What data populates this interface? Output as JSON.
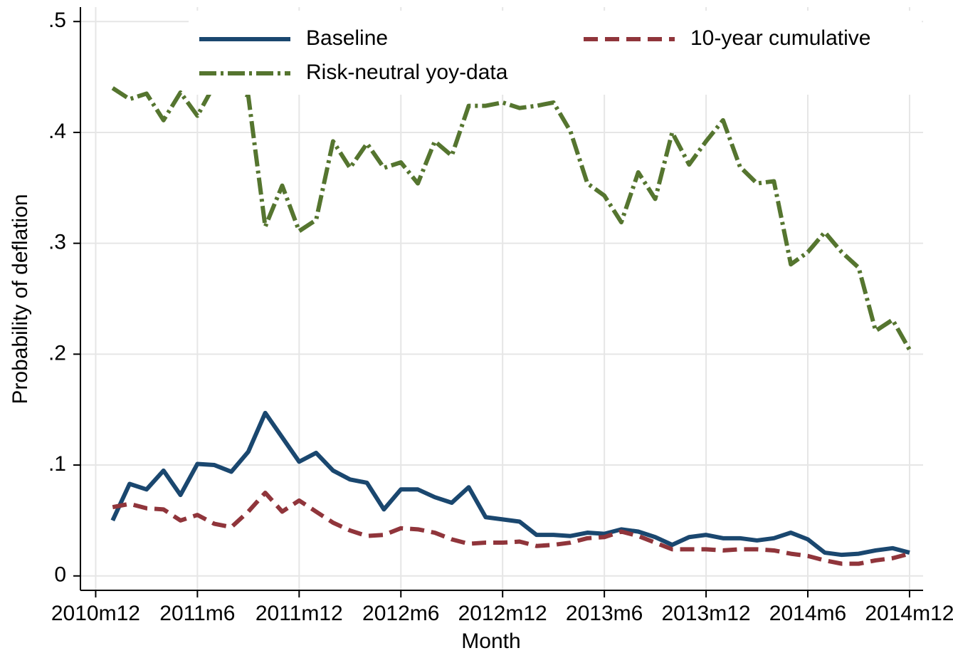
{
  "chart_data": {
    "type": "line",
    "xlabel": "Month",
    "ylabel": "Probability of deflation",
    "x": [
      612,
      613,
      614,
      615,
      616,
      617,
      618,
      619,
      620,
      621,
      622,
      623,
      624,
      625,
      626,
      627,
      628,
      629,
      630,
      631,
      632,
      633,
      634,
      635,
      636,
      637,
      638,
      639,
      640,
      641,
      642,
      643,
      644,
      645,
      646,
      647,
      648,
      649,
      650,
      651,
      652,
      653,
      654,
      655,
      656,
      657,
      658,
      659
    ],
    "xlim": [
      610.1,
      659.8
    ],
    "xticks": [
      {
        "value": 611,
        "label": "2010m12"
      },
      {
        "value": 617,
        "label": "2011m6"
      },
      {
        "value": 623,
        "label": "2011m12"
      },
      {
        "value": 629,
        "label": "2012m6"
      },
      {
        "value": 635,
        "label": "2012m12"
      },
      {
        "value": 641,
        "label": "2013m6"
      },
      {
        "value": 647,
        "label": "2013m12"
      },
      {
        "value": 653,
        "label": "2014m6"
      },
      {
        "value": 659,
        "label": "2014m12"
      }
    ],
    "ylim": [
      -0.013,
      0.513
    ],
    "yticks": [
      0,
      {
        "value": 0.1,
        "label": ".1"
      },
      {
        "value": 0.2,
        "label": ".2"
      },
      {
        "value": 0.3,
        "label": ".3"
      },
      {
        "value": 0.4,
        "label": ".4"
      },
      {
        "value": 0.5,
        "label": ".5"
      }
    ],
    "grid": true,
    "legend": "top",
    "series": [
      {
        "name": "Baseline",
        "color": "#1a476f",
        "style": "solid",
        "values": [
          0.05,
          0.083,
          0.078,
          0.095,
          0.073,
          0.101,
          0.1,
          0.094,
          0.112,
          0.147,
          0.125,
          0.103,
          0.111,
          0.095,
          0.087,
          0.084,
          0.06,
          0.078,
          0.078,
          0.071,
          0.066,
          0.08,
          0.053,
          0.051,
          0.049,
          0.037,
          0.037,
          0.036,
          0.039,
          0.038,
          0.042,
          0.04,
          0.035,
          0.028,
          0.035,
          0.037,
          0.034,
          0.034,
          0.032,
          0.034,
          0.039,
          0.033,
          0.021,
          0.019,
          0.02,
          0.023,
          0.025,
          0.021
        ]
      },
      {
        "name": "10-year cumulative",
        "color": "#90353b",
        "style": "dash",
        "values": [
          0.062,
          0.065,
          0.061,
          0.06,
          0.05,
          0.055,
          0.047,
          0.044,
          0.058,
          0.075,
          0.058,
          0.068,
          0.058,
          0.048,
          0.041,
          0.036,
          0.037,
          0.043,
          0.042,
          0.039,
          0.033,
          0.029,
          0.03,
          0.03,
          0.031,
          0.027,
          0.028,
          0.03,
          0.034,
          0.035,
          0.04,
          0.036,
          0.03,
          0.024,
          0.024,
          0.024,
          0.023,
          0.024,
          0.024,
          0.023,
          0.02,
          0.018,
          0.014,
          0.011,
          0.011,
          0.014,
          0.016,
          0.02
        ]
      },
      {
        "name": "Risk-neutral yoy-data",
        "color": "#55752f",
        "style": "dashdot",
        "values": [
          0.44,
          0.43,
          0.435,
          0.411,
          0.436,
          0.415,
          0.443,
          0.44,
          0.433,
          0.315,
          0.352,
          0.311,
          0.321,
          0.392,
          0.368,
          0.39,
          0.368,
          0.373,
          0.354,
          0.392,
          0.379,
          0.424,
          0.424,
          0.427,
          0.422,
          0.424,
          0.427,
          0.401,
          0.354,
          0.343,
          0.319,
          0.364,
          0.34,
          0.4,
          0.371,
          0.392,
          0.411,
          0.369,
          0.354,
          0.356,
          0.281,
          0.292,
          0.31,
          0.292,
          0.278,
          0.221,
          0.231,
          0.204
        ]
      }
    ]
  }
}
